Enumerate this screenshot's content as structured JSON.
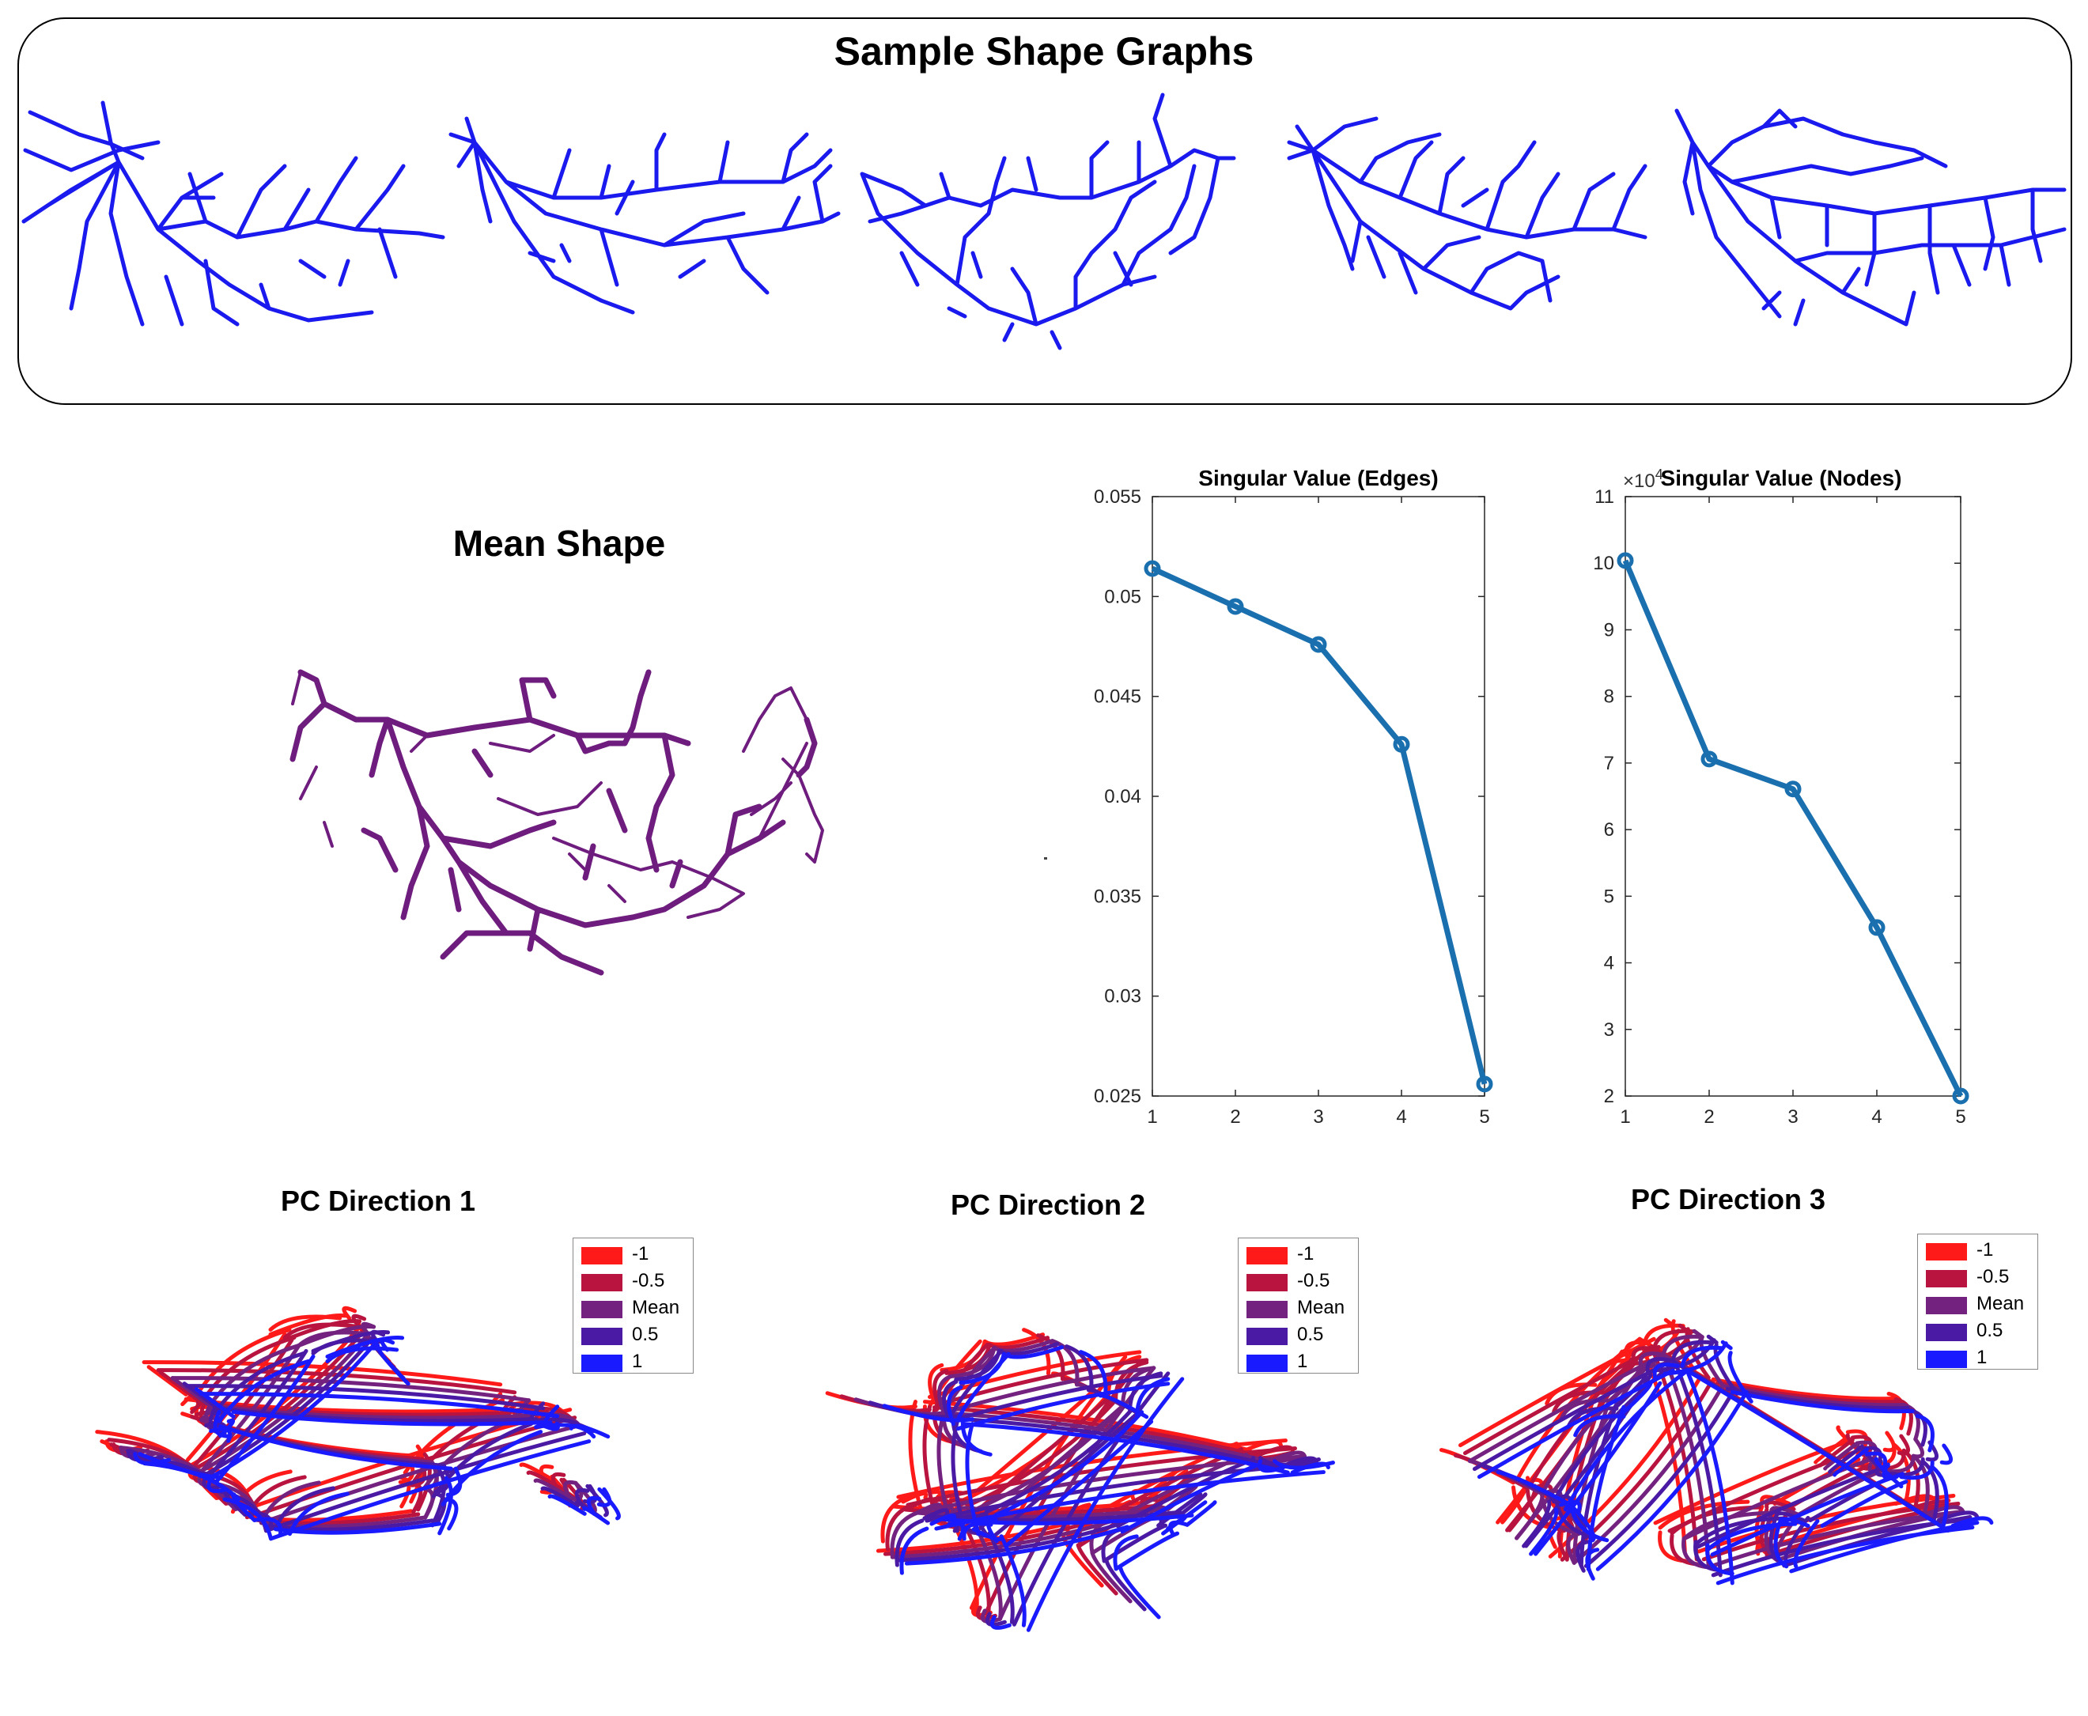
{
  "panels": {
    "sample_title": "Sample Shape Graphs",
    "mean_title": "Mean Shape",
    "pc_titles": [
      "PC Direction 1",
      "PC Direction 2",
      "PC Direction 3"
    ]
  },
  "colors": {
    "sample_graph": "#1a1aee",
    "mean_graph": "#6e1c7d",
    "line_series": "#1a6fae",
    "legend_minus1": "#ff1a1a",
    "legend_minus05": "#b8143f",
    "legend_mean": "#74227f",
    "legend_plus05": "#4a1aa5",
    "legend_plus1": "#1a1aff"
  },
  "legend": {
    "entries": [
      "-1",
      "-0.5",
      "Mean",
      "0.5",
      "1"
    ]
  },
  "chart_data": [
    {
      "type": "line",
      "title": "Singular Value (Edges)",
      "x": [
        1,
        2,
        3,
        4,
        5
      ],
      "y": [
        0.0514,
        0.0495,
        0.0476,
        0.0426,
        0.0256
      ],
      "xlim": [
        1,
        5
      ],
      "ylim": [
        0.025,
        0.055
      ],
      "xticks": [
        "1",
        "2",
        "3",
        "4",
        "5"
      ],
      "yticks": [
        "0.025",
        "0.03",
        "0.035",
        "0.04",
        "0.045",
        "0.05",
        "0.055"
      ],
      "multiplier": ""
    },
    {
      "type": "line",
      "title": "Singular Value (Nodes)",
      "x": [
        1,
        2,
        3,
        4,
        5
      ],
      "y": [
        100400,
        70600,
        66100,
        45300,
        20000
      ],
      "xlim": [
        1,
        5
      ],
      "ylim": [
        20000,
        110000
      ],
      "xticks": [
        "1",
        "2",
        "3",
        "4",
        "5"
      ],
      "yticks": [
        "2",
        "3",
        "4",
        "5",
        "6",
        "7",
        "8",
        "9",
        "10",
        "11"
      ],
      "multiplier": "×10^4",
      "multiplier_base": "×10",
      "multiplier_exp": "4"
    }
  ]
}
